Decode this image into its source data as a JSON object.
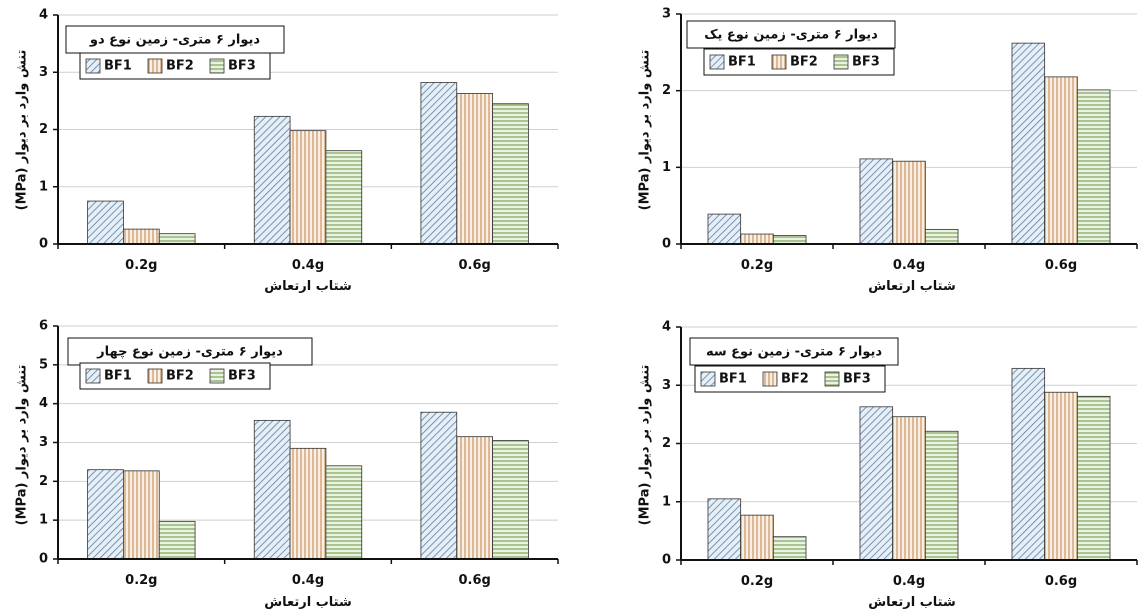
{
  "colors": {
    "BF1": "#5b7fa6",
    "BF2": "#c9955f",
    "BF3": "#7fa65b",
    "BF1_bg": "#e6eef6",
    "BF2_bg": "#faefe4",
    "BF3_bg": "#eaf2e2"
  },
  "chart_data": [
    {
      "type": "bar",
      "title": "دیوار ۶ متری- زمین نوع دو",
      "xlabel": "شتاب ارتعاش",
      "ylabel": "تنش وارد بر دیوار (MPa)",
      "categories": [
        "0.2g",
        "0.4g",
        "0.6g"
      ],
      "ylim": [
        0,
        4
      ],
      "yticks": [
        "0",
        "1",
        "2",
        "3",
        "4"
      ],
      "grid": true,
      "legend_position": "top-left",
      "series": [
        {
          "name": "BF1",
          "values": [
            0.75,
            2.23,
            2.82
          ]
        },
        {
          "name": "BF2",
          "values": [
            0.26,
            1.98,
            2.63
          ]
        },
        {
          "name": "BF3",
          "values": [
            0.18,
            1.63,
            2.45
          ]
        }
      ]
    },
    {
      "type": "bar",
      "title": "دیوار ۶ متری- زمین نوع یک",
      "xlabel": "شتاب ارتعاش",
      "ylabel": "تنش وارد بر دیوار (MPa)",
      "categories": [
        "0.2g",
        "0.4g",
        "0.6g"
      ],
      "ylim": [
        0,
        3
      ],
      "yticks": [
        "0",
        "1",
        "2",
        "3"
      ],
      "grid": true,
      "legend_position": "top-left",
      "series": [
        {
          "name": "BF1",
          "values": [
            0.39,
            1.11,
            2.62
          ]
        },
        {
          "name": "BF2",
          "values": [
            0.13,
            1.08,
            2.18
          ]
        },
        {
          "name": "BF3",
          "values": [
            0.11,
            0.19,
            2.01
          ]
        }
      ]
    },
    {
      "type": "bar",
      "title": "دیوار ۶ متری- زمین نوع چهار",
      "xlabel": "شتاب ارتعاش",
      "ylabel": "تنش وارد بر دیوار (MPa)",
      "categories": [
        "0.2g",
        "0.4g",
        "0.6g"
      ],
      "ylim": [
        0,
        6
      ],
      "yticks": [
        "0",
        "1",
        "2",
        "3",
        "4",
        "5",
        "6"
      ],
      "grid": true,
      "legend_position": "top-left",
      "series": [
        {
          "name": "BF1",
          "values": [
            2.3,
            3.57,
            3.78
          ]
        },
        {
          "name": "BF2",
          "values": [
            2.27,
            2.85,
            3.15
          ]
        },
        {
          "name": "BF3",
          "values": [
            0.97,
            2.4,
            3.05
          ]
        }
      ]
    },
    {
      "type": "bar",
      "title": "دیوار ۶ متری- زمین نوع سه",
      "xlabel": "شتاب ارتعاش",
      "ylabel": "تنش وارد بر دیوار (MPa)",
      "categories": [
        "0.2g",
        "0.4g",
        "0.6g"
      ],
      "ylim": [
        0,
        4
      ],
      "yticks": [
        "0",
        "1",
        "2",
        "3",
        "4"
      ],
      "grid": true,
      "legend_position": "top-left",
      "series": [
        {
          "name": "BF1",
          "values": [
            1.05,
            2.63,
            3.29
          ]
        },
        {
          "name": "BF2",
          "values": [
            0.77,
            2.46,
            2.88
          ]
        },
        {
          "name": "BF3",
          "values": [
            0.4,
            2.21,
            2.81
          ]
        }
      ]
    }
  ]
}
